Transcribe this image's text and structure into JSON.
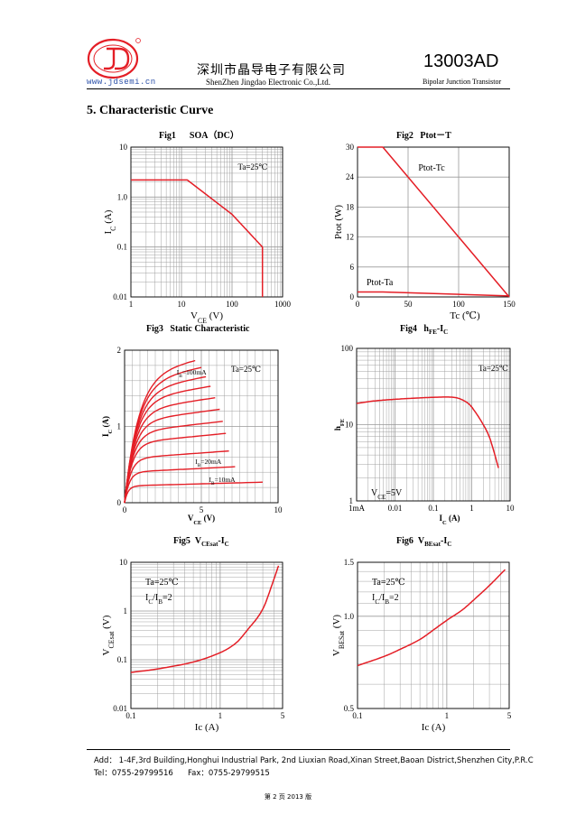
{
  "header": {
    "website": "www.jdsemi.cn",
    "company_cn": "深圳市晶导电子有限公司",
    "company_en": "ShenZhen Jingdao Electronic Co.,Ltd.",
    "model": "13003AD",
    "device_type": "Bipolar Junction Transistor"
  },
  "section_title": "5.  Characteristic Curve",
  "footer": {
    "address": "Add：  1-4F,3rd Building,Honghui Industrial Park, 2nd Liuxian Road,Xinan Street,Baoan District,Shenzhen City,P.R.C",
    "tel": "Tel：0755-29799516",
    "fax": "Fax：0755-29799515",
    "page": "第 2 页    2013 版"
  },
  "colors": {
    "curve": "#e41e26",
    "grid": "#999999",
    "logo": "#e41e26",
    "site": "#2a4fa8"
  },
  "chart_data": [
    {
      "id": "fig1",
      "type": "line",
      "fig_label": "Fig1",
      "title": "SOA（DC）",
      "xlabel": "VCE (V)",
      "ylabel": "IC (A)",
      "xscale": "log",
      "yscale": "log",
      "xlim": [
        1,
        1000
      ],
      "ylim": [
        0.01,
        10
      ],
      "xticks": [
        "1",
        "10",
        "100",
        "1000"
      ],
      "yticks": [
        "0.01",
        "0.1",
        "1.0",
        "10"
      ],
      "annotation": "Ta=25℃",
      "series": [
        {
          "x": [
            1,
            13,
            100,
            400,
            400
          ],
          "y": [
            2.2,
            2.2,
            0.45,
            0.1,
            0.01
          ]
        }
      ]
    },
    {
      "id": "fig2",
      "type": "line",
      "fig_label": "Fig2",
      "title": "Ptot－T",
      "xlabel": "Tc (℃)",
      "ylabel": "Ptot (W)",
      "xlim": [
        0,
        150
      ],
      "ylim": [
        0,
        30
      ],
      "xticks": [
        "0",
        "50",
        "100",
        "150"
      ],
      "yticks": [
        "0",
        "6",
        "12",
        "18",
        "24",
        "30"
      ],
      "series": [
        {
          "name": "Ptot-Tc",
          "x": [
            0,
            25,
            150
          ],
          "y": [
            30,
            30,
            0
          ]
        },
        {
          "name": "Ptot-Ta",
          "x": [
            0,
            25,
            150
          ],
          "y": [
            1.0,
            1.0,
            0.2
          ]
        }
      ]
    },
    {
      "id": "fig3",
      "type": "line",
      "fig_label": "Fig3",
      "title": "Static Characteristic",
      "xlabel": "VCE (V)",
      "ylabel": "IC (A)",
      "xlim": [
        0,
        10
      ],
      "ylim": [
        0,
        2
      ],
      "xticks": [
        "0",
        "5",
        "10"
      ],
      "yticks": [
        "0",
        "1",
        "2"
      ],
      "annotation": "Ta=25℃",
      "curve_labels": [
        "IB=100mA",
        "IB=20mA",
        "IB=10mA"
      ],
      "families": [
        {
          "sat": 0.22,
          "xend": 9.0
        },
        {
          "sat": 0.4,
          "xend": 7.2
        },
        {
          "sat": 0.58,
          "xend": 6.8
        },
        {
          "sat": 0.78,
          "xend": 6.6
        },
        {
          "sat": 0.92,
          "xend": 6.4
        },
        {
          "sat": 1.06,
          "xend": 6.2
        },
        {
          "sat": 1.2,
          "xend": 5.9
        },
        {
          "sat": 1.34,
          "xend": 5.6
        },
        {
          "sat": 1.46,
          "xend": 5.3
        },
        {
          "sat": 1.58,
          "xend": 5.0
        },
        {
          "sat": 1.68,
          "xend": 4.6
        }
      ]
    },
    {
      "id": "fig4",
      "type": "line",
      "fig_label": "Fig4",
      "title": "hFE-IC",
      "xlabel": "IC (A)",
      "ylabel": "hFE",
      "xscale": "log",
      "yscale": "log",
      "xlim": [
        0.001,
        10
      ],
      "ylim": [
        1,
        100
      ],
      "xticks": [
        "1mA",
        "0.01",
        "0.1",
        "1",
        "10"
      ],
      "yticks": [
        "1",
        "10",
        "100"
      ],
      "annotation": "Ta=25℃",
      "condition": "VCE=5V",
      "series": [
        {
          "x": [
            0.001,
            0.003,
            0.01,
            0.05,
            0.2,
            0.4,
            0.7,
            1.0,
            2.0,
            3.0,
            5.0
          ],
          "y": [
            19,
            20.5,
            21.5,
            22.5,
            23,
            22.5,
            20,
            17,
            10,
            6.5,
            2.7
          ]
        }
      ]
    },
    {
      "id": "fig5",
      "type": "line",
      "fig_label": "Fig5",
      "title": "VCEsat-IC",
      "xlabel": "Ic (A)",
      "ylabel": "VCEsat (V)",
      "xscale": "log",
      "yscale": "log",
      "xlim": [
        0.1,
        5
      ],
      "ylim": [
        0.01,
        10
      ],
      "xticks": [
        "0.1",
        "1",
        "5"
      ],
      "yticks": [
        "0.01",
        "0.1",
        "1",
        "10"
      ],
      "annotation": "Ta=25℃",
      "condition": "IC/IB=2",
      "series": [
        {
          "x": [
            0.1,
            0.2,
            0.5,
            1.0,
            1.5,
            2.0,
            3.0,
            4.0,
            4.5
          ],
          "y": [
            0.055,
            0.065,
            0.09,
            0.14,
            0.22,
            0.4,
            1.1,
            4.5,
            8.5
          ]
        }
      ]
    },
    {
      "id": "fig6",
      "type": "line",
      "fig_label": "Fig6",
      "title": "VBEsat-IC",
      "xlabel": "Ic (A)",
      "ylabel": "VBESat (V)",
      "xscale": "log",
      "yscale": "log",
      "xlim": [
        0.1,
        5
      ],
      "ylim": [
        0.5,
        1.5
      ],
      "xticks": [
        "0.1",
        "1",
        "5"
      ],
      "yticks": [
        "0.5",
        "1.0",
        "1.5"
      ],
      "annotation": "Ta=25℃",
      "condition": "IC/IB=2",
      "series": [
        {
          "x": [
            0.1,
            0.2,
            0.3,
            0.5,
            0.7,
            1.0,
            1.5,
            2.0,
            3.0,
            4.5
          ],
          "y": [
            0.69,
            0.74,
            0.78,
            0.84,
            0.9,
            0.97,
            1.05,
            1.13,
            1.26,
            1.42
          ]
        }
      ]
    }
  ]
}
